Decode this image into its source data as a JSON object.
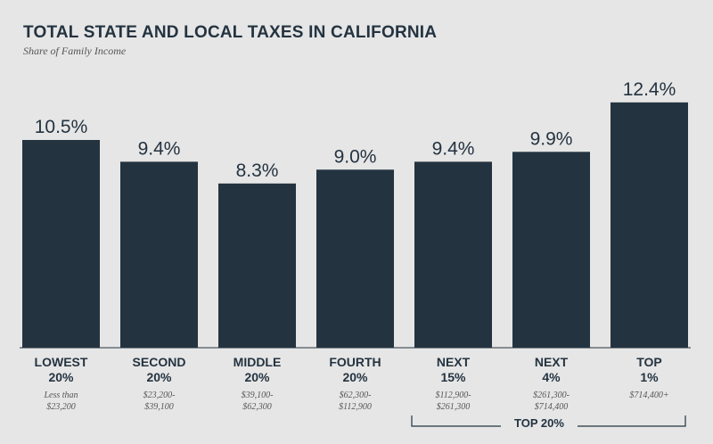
{
  "header": {
    "title": "TOTAL STATE AND LOCAL TAXES IN CALIFORNIA",
    "subtitle": "Share of Family Income"
  },
  "chart_data": {
    "type": "bar",
    "title": "TOTAL STATE AND LOCAL TAXES IN CALIFORNIA",
    "subtitle": "Share of Family Income",
    "ylabel": "",
    "xlabel": "",
    "ylim": [
      0,
      14
    ],
    "grid": false,
    "categories": [
      {
        "line1": "LOWEST",
        "line2": "20%",
        "range1": "Less than",
        "range2": "$23,200"
      },
      {
        "line1": "SECOND",
        "line2": "20%",
        "range1": "$23,200-",
        "range2": "$39,100"
      },
      {
        "line1": "MIDDLE",
        "line2": "20%",
        "range1": "$39,100-",
        "range2": "$62,300"
      },
      {
        "line1": "FOURTH",
        "line2": "20%",
        "range1": "$62,300-",
        "range2": "$112,900"
      },
      {
        "line1": "NEXT",
        "line2": "15%",
        "range1": "$112,900-",
        "range2": "$261,300"
      },
      {
        "line1": "NEXT",
        "line2": "4%",
        "range1": "$261,300-",
        "range2": "$714,400"
      },
      {
        "line1": "TOP",
        "line2": "1%",
        "range1": "$714,400+",
        "range2": ""
      }
    ],
    "values": [
      10.5,
      9.4,
      8.3,
      9.0,
      9.4,
      9.9,
      12.4
    ],
    "value_labels": [
      "10.5%",
      "9.4%",
      "8.3%",
      "9.0%",
      "9.4%",
      "9.9%",
      "12.4%"
    ],
    "group_bracket": {
      "label": "TOP 20%",
      "from_index": 4,
      "to_index": 6
    },
    "colors": {
      "bar": "#243340",
      "text": "#243340",
      "background": "#e6e6e6"
    }
  }
}
